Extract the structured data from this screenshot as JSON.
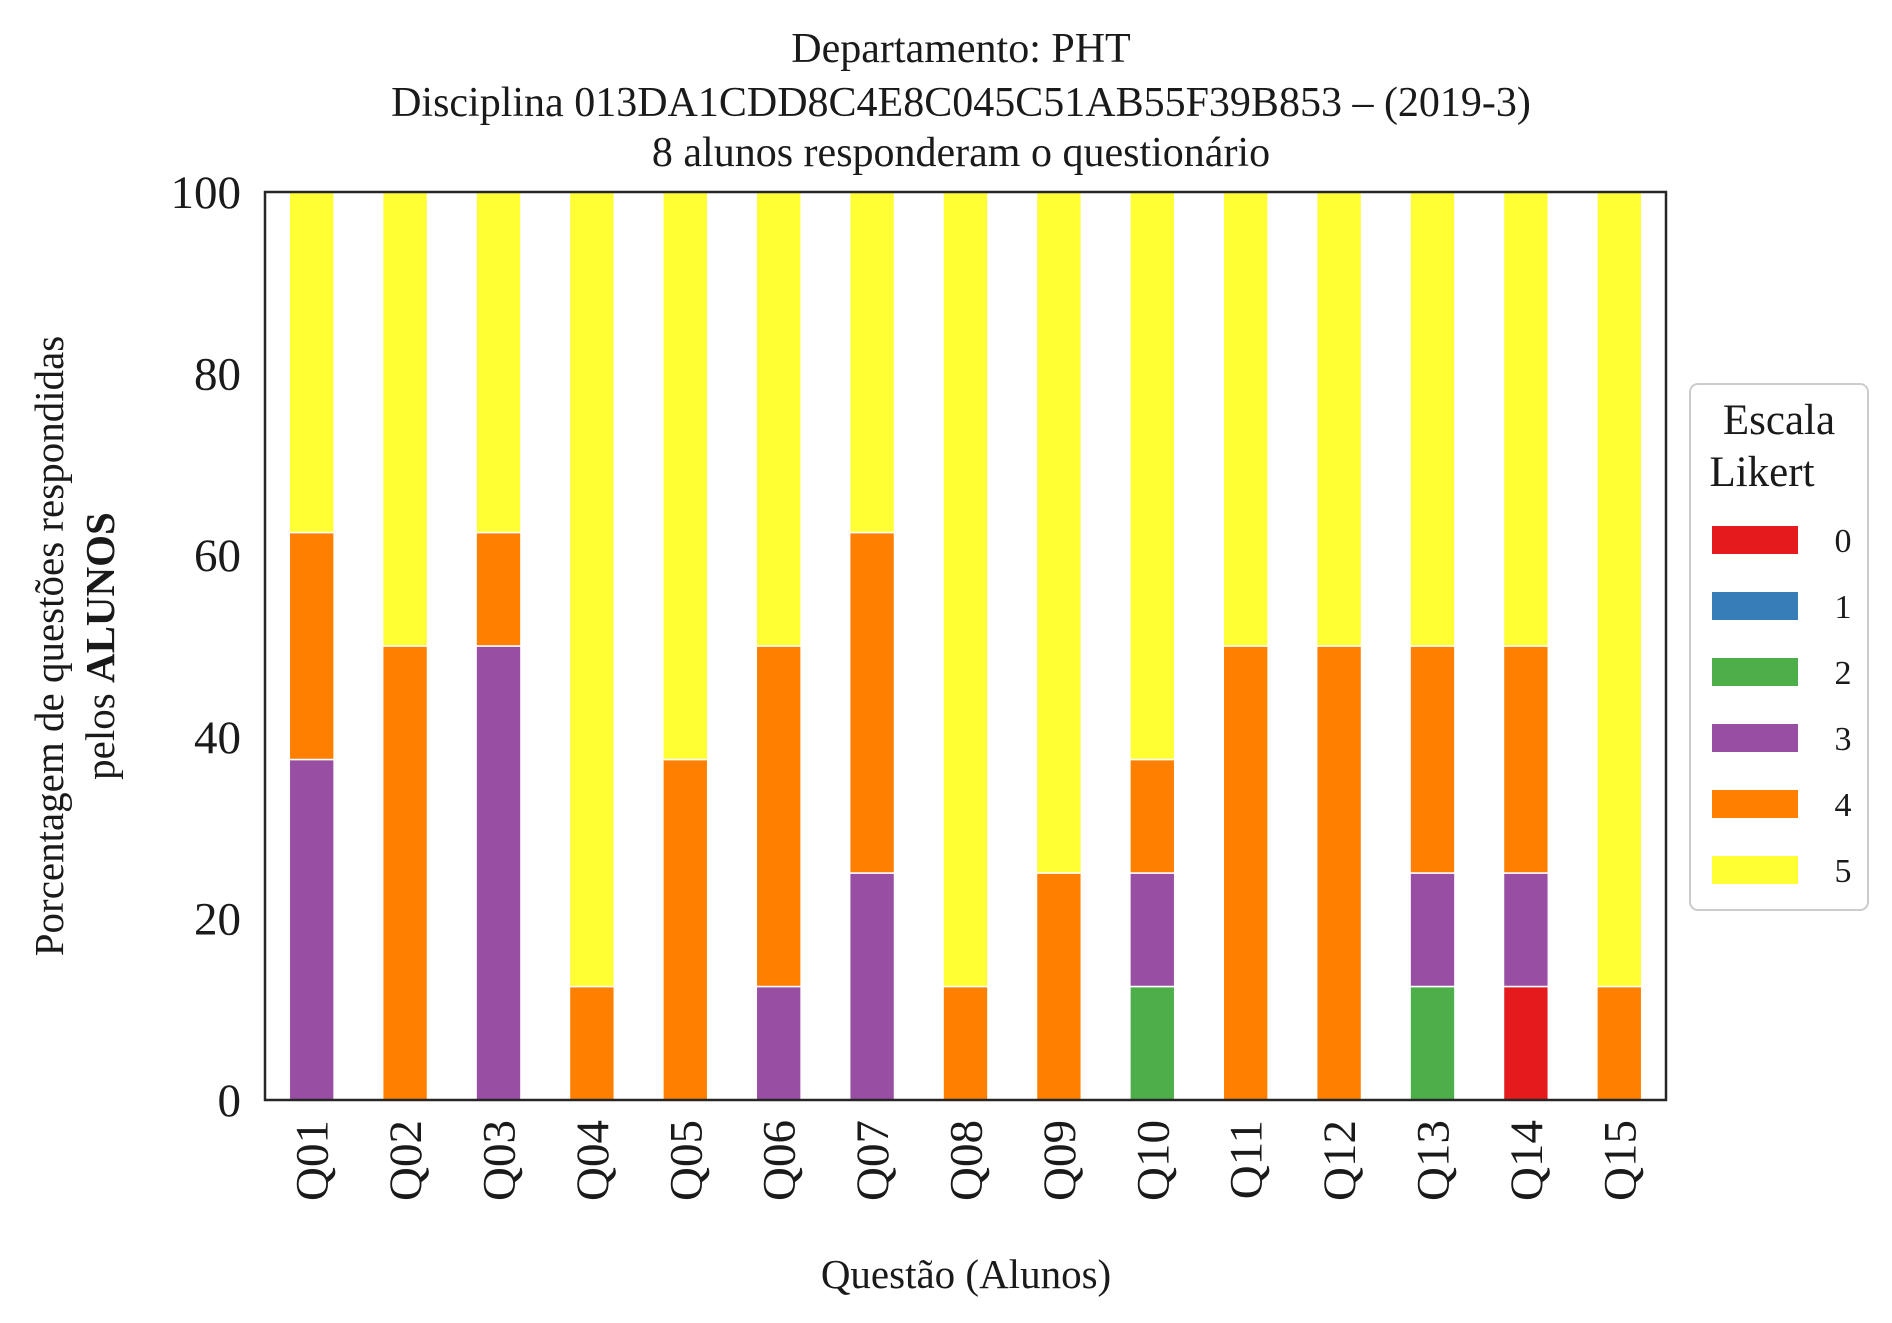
{
  "chart_data": {
    "type": "bar",
    "stacked": true,
    "title": [
      "Departamento: PHT",
      "Disciplina 013DA1CDD8C4E8C045C51AB55F39B853 – (2019-3)",
      "8 alunos responderam o questionário"
    ],
    "xlabel": "Questão (Alunos)",
    "ylabel_line1": "Porcentagem de questões respondidas",
    "ylabel_line2_prefix": "pelos",
    "ylabel_line2_bold": "ALUNOS",
    "ylim": [
      0,
      100
    ],
    "yticks": [
      0,
      20,
      40,
      60,
      80,
      100
    ],
    "grid": false,
    "legend_title": [
      "Escala",
      "Likert"
    ],
    "legend_position": "center-right-outside",
    "categories": [
      "Q01",
      "Q02",
      "Q03",
      "Q04",
      "Q05",
      "Q06",
      "Q07",
      "Q08",
      "Q09",
      "Q10",
      "Q11",
      "Q12",
      "Q13",
      "Q14",
      "Q15"
    ],
    "series": [
      {
        "name": "0",
        "color": "#e41a1c",
        "values": [
          0,
          0,
          0,
          0,
          0,
          0,
          0,
          0,
          0,
          0,
          0,
          0,
          0,
          12.5,
          0
        ]
      },
      {
        "name": "1",
        "color": "#377eb8",
        "values": [
          0,
          0,
          0,
          0,
          0,
          0,
          0,
          0,
          0,
          0,
          0,
          0,
          0,
          0,
          0
        ]
      },
      {
        "name": "2",
        "color": "#4daf4a",
        "values": [
          0,
          0,
          0,
          0,
          0,
          0,
          0,
          0,
          0,
          12.5,
          0,
          0,
          12.5,
          0,
          0
        ]
      },
      {
        "name": "3",
        "color": "#984ea3",
        "values": [
          37.5,
          0,
          50,
          0,
          0,
          12.5,
          25,
          0,
          0,
          12.5,
          0,
          0,
          12.5,
          12.5,
          0
        ]
      },
      {
        "name": "4",
        "color": "#ff7f00",
        "values": [
          25,
          50,
          12.5,
          12.5,
          37.5,
          37.5,
          37.5,
          12.5,
          25,
          12.5,
          50,
          50,
          25,
          25,
          12.5
        ]
      },
      {
        "name": "5",
        "color": "#ffff33",
        "values": [
          37.5,
          50,
          37.5,
          87.5,
          62.5,
          50,
          37.5,
          87.5,
          75,
          62.5,
          50,
          50,
          50,
          50,
          87.5
        ]
      }
    ]
  }
}
